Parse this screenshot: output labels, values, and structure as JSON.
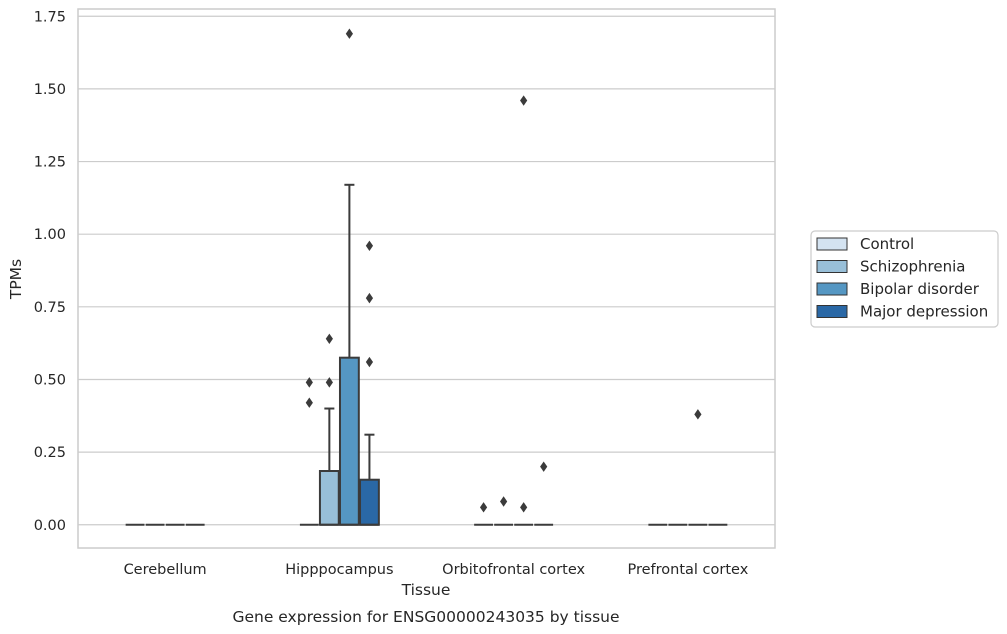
{
  "chart_data": {
    "type": "box",
    "title": "Gene expression for ENSG00000243035 by tissue",
    "xlabel": "Tissue",
    "ylabel": "TPMs",
    "ylim": [
      -0.08,
      1.775
    ],
    "yticks": [
      "0.00",
      "0.25",
      "0.50",
      "0.75",
      "1.00",
      "1.25",
      "1.50",
      "1.75"
    ],
    "grid": true,
    "legend_position": "right",
    "categories": [
      "Cerebellum",
      "Hipppocampus",
      "Orbitofrontal cortex",
      "Prefrontal cortex"
    ],
    "series": [
      {
        "name": "Control",
        "color": "#d4e3f1",
        "boxes": [
          {
            "q1": 0,
            "median": 0,
            "q3": 0,
            "whisker_low": 0,
            "whisker_high": 0,
            "outliers": []
          },
          {
            "q1": 0,
            "median": 0,
            "q3": 0,
            "whisker_low": 0,
            "whisker_high": 0,
            "outliers": [
              0.42,
              0.49
            ]
          },
          {
            "q1": 0,
            "median": 0,
            "q3": 0,
            "whisker_low": 0,
            "whisker_high": 0,
            "outliers": [
              0.06
            ]
          },
          {
            "q1": 0,
            "median": 0,
            "q3": 0,
            "whisker_low": 0,
            "whisker_high": 0,
            "outliers": []
          }
        ]
      },
      {
        "name": "Schizophrenia",
        "color": "#98bfd8",
        "boxes": [
          {
            "q1": 0,
            "median": 0,
            "q3": 0,
            "whisker_low": 0,
            "whisker_high": 0,
            "outliers": []
          },
          {
            "q1": 0,
            "median": 0,
            "q3": 0.185,
            "whisker_low": 0,
            "whisker_high": 0.4,
            "outliers": [
              0.49,
              0.64
            ]
          },
          {
            "q1": 0,
            "median": 0,
            "q3": 0,
            "whisker_low": 0,
            "whisker_high": 0,
            "outliers": [
              0.08
            ]
          },
          {
            "q1": 0,
            "median": 0,
            "q3": 0,
            "whisker_low": 0,
            "whisker_high": 0,
            "outliers": []
          }
        ]
      },
      {
        "name": "Bipolar disorder",
        "color": "#5597c3",
        "boxes": [
          {
            "q1": 0,
            "median": 0,
            "q3": 0,
            "whisker_low": 0,
            "whisker_high": 0,
            "outliers": []
          },
          {
            "q1": 0,
            "median": 0,
            "q3": 0.575,
            "whisker_low": 0,
            "whisker_high": 1.17,
            "outliers": [
              1.69
            ]
          },
          {
            "q1": 0,
            "median": 0,
            "q3": 0,
            "whisker_low": 0,
            "whisker_high": 0,
            "outliers": [
              0.06,
              1.46
            ]
          },
          {
            "q1": 0,
            "median": 0,
            "q3": 0,
            "whisker_low": 0,
            "whisker_high": 0,
            "outliers": [
              0.38
            ]
          }
        ]
      },
      {
        "name": "Major depression",
        "color": "#2a68a6",
        "boxes": [
          {
            "q1": 0,
            "median": 0,
            "q3": 0,
            "whisker_low": 0,
            "whisker_high": 0,
            "outliers": []
          },
          {
            "q1": 0,
            "median": 0,
            "q3": 0.155,
            "whisker_low": 0,
            "whisker_high": 0.31,
            "outliers": [
              0.56,
              0.78,
              0.96
            ]
          },
          {
            "q1": 0,
            "median": 0,
            "q3": 0,
            "whisker_low": 0,
            "whisker_high": 0,
            "outliers": [
              0.2
            ]
          },
          {
            "q1": 0,
            "median": 0,
            "q3": 0,
            "whisker_low": 0,
            "whisker_high": 0,
            "outliers": []
          }
        ]
      }
    ]
  }
}
